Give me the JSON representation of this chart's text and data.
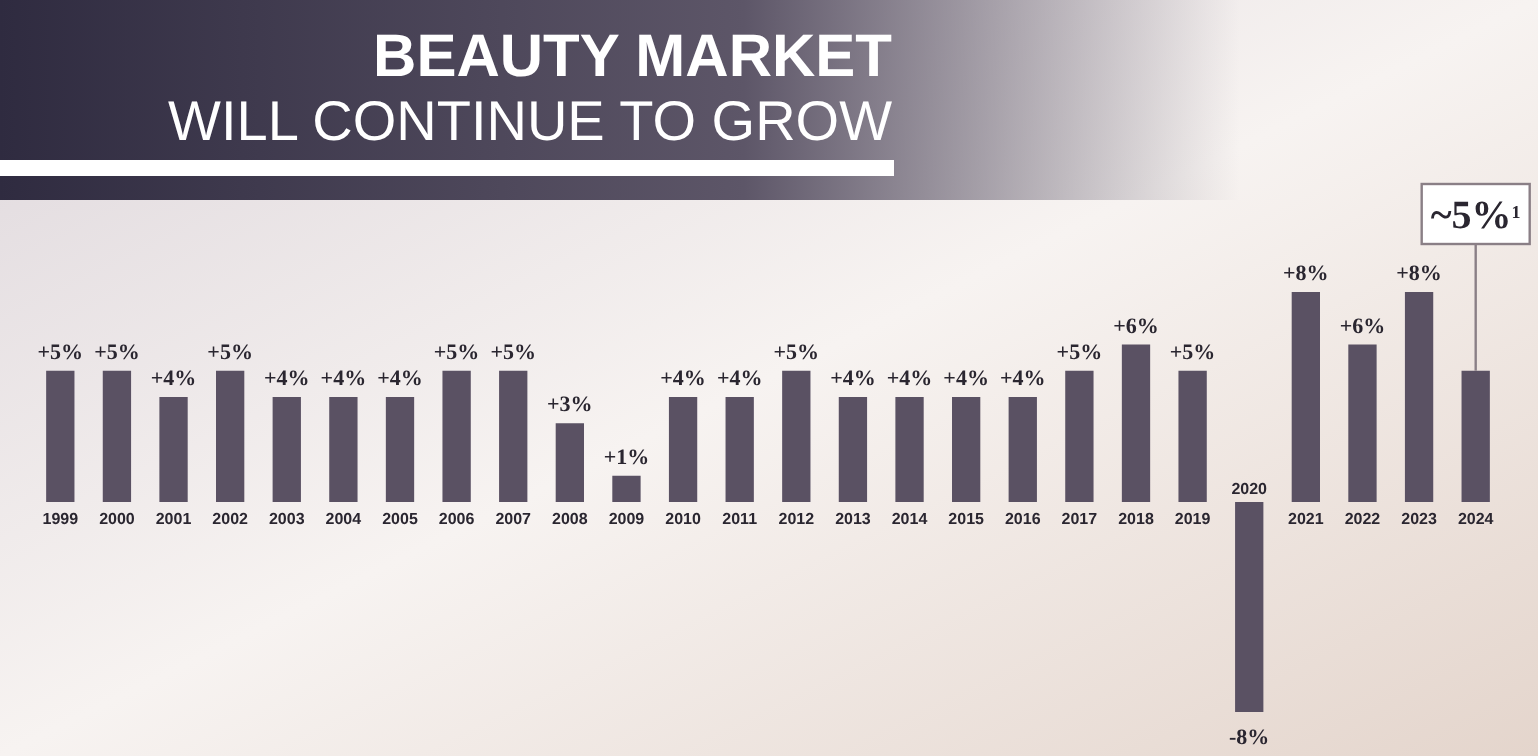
{
  "chart_data": {
    "type": "bar",
    "title": "BEAUTY MARKET",
    "subtitle": "WILL CONTINUE TO GROW",
    "categories": [
      "1999",
      "2000",
      "2001",
      "2002",
      "2003",
      "2004",
      "2005",
      "2006",
      "2007",
      "2008",
      "2009",
      "2010",
      "2011",
      "2012",
      "2013",
      "2014",
      "2015",
      "2016",
      "2017",
      "2018",
      "2019",
      "2020",
      "2021",
      "2022",
      "2023",
      "2024"
    ],
    "values": [
      5,
      5,
      4,
      5,
      4,
      4,
      4,
      5,
      5,
      3,
      1,
      4,
      4,
      5,
      4,
      4,
      4,
      4,
      5,
      6,
      5,
      -8,
      8,
      6,
      8,
      5
    ],
    "color": "#5a5163",
    "value_labels": [
      "+5%",
      "+5%",
      "+4%",
      "+5%",
      "+4%",
      "+4%",
      "+4%",
      "+5%",
      "+5%",
      "+3%",
      "+1%",
      "+4%",
      "+4%",
      "+5%",
      "+4%",
      "+4%",
      "+4%",
      "+4%",
      "+5%",
      "+6%",
      "+5%",
      "-8%",
      "+8%",
      "+6%",
      "+8%",
      "~5%$^{1}$"
    ]
  }
}
